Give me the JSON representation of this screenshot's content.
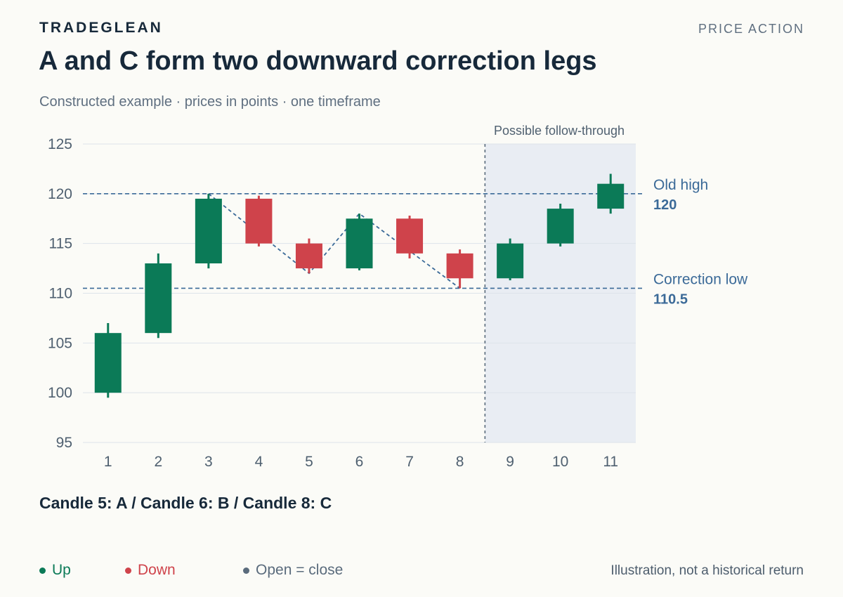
{
  "header": {
    "brand": "TRADEGLEAN",
    "category": "PRICE ACTION",
    "title": "A and C form two downward correction legs",
    "subtitle": "Constructed example · prices in points · one timeframe"
  },
  "chart_data": {
    "type": "candlestick",
    "ylim": [
      95,
      125
    ],
    "yticks": [
      95,
      100,
      105,
      110,
      115,
      120,
      125
    ],
    "grid": true,
    "categories": [
      "1",
      "2",
      "3",
      "4",
      "5",
      "6",
      "7",
      "8",
      "9",
      "10",
      "11"
    ],
    "candles": [
      {
        "x": "1",
        "open": 100,
        "high": 107,
        "low": 99.5,
        "close": 106
      },
      {
        "x": "2",
        "open": 106,
        "high": 114,
        "low": 105.5,
        "close": 113
      },
      {
        "x": "3",
        "open": 113,
        "high": 120,
        "low": 112.5,
        "close": 119.5
      },
      {
        "x": "4",
        "open": 119.5,
        "high": 119.8,
        "low": 114.7,
        "close": 115
      },
      {
        "x": "5",
        "open": 115,
        "high": 115.5,
        "low": 112,
        "close": 112.5
      },
      {
        "x": "6",
        "open": 112.5,
        "high": 118,
        "low": 112.3,
        "close": 117.5
      },
      {
        "x": "7",
        "open": 117.5,
        "high": 117.8,
        "low": 113.5,
        "close": 114
      },
      {
        "x": "8",
        "open": 114,
        "high": 114.4,
        "low": 110.5,
        "close": 111.5
      },
      {
        "x": "9",
        "open": 111.5,
        "high": 115.5,
        "low": 111.3,
        "close": 115
      },
      {
        "x": "10",
        "open": 115,
        "high": 119,
        "low": 114.7,
        "close": 118.5
      },
      {
        "x": "11",
        "open": 118.5,
        "high": 122,
        "low": 118,
        "close": 121
      }
    ],
    "zigzag": [
      {
        "x": "3",
        "y": 120
      },
      {
        "x": "5",
        "y": 112
      },
      {
        "x": "6",
        "y": 118
      },
      {
        "x": "8",
        "y": 110.5
      }
    ],
    "levels": [
      {
        "name": "Old high",
        "value": 120,
        "value_label": "120"
      },
      {
        "name": "Correction low",
        "value": 110.5,
        "value_label": "110.5"
      }
    ],
    "followthrough": {
      "label": "Possible follow-through",
      "from_after": "8"
    },
    "colors": {
      "up": "#0b7a57",
      "down": "#cf434b",
      "flat": "#5a6b7c",
      "level": "#3b6a98",
      "shade": "#e9edf3"
    }
  },
  "annotation": "Candle 5: A / Candle 6: B / Candle 8: C",
  "legend": {
    "up": "Up",
    "down": "Down",
    "flat": "Open = close"
  },
  "footer": "Illustration, not a historical return"
}
